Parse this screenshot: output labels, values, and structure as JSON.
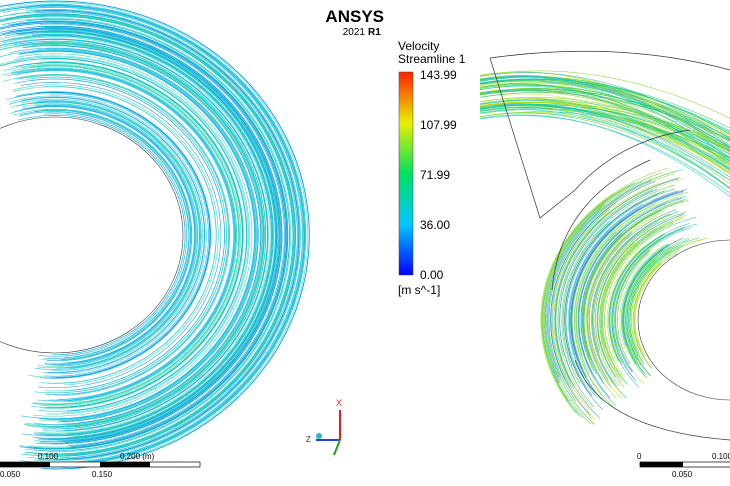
{
  "logo": {
    "brand": "ANSYS",
    "year": "2021",
    "release": "R1"
  },
  "legend": {
    "title": "Velocity",
    "subtitle": "Streamline 1",
    "ticks": [
      "143.99",
      "107.99",
      "71.99",
      "36.00",
      "0.00"
    ],
    "unit": "[m s^-1]"
  },
  "scale_left": {
    "top": [
      "0.100",
      "0.200 (m)"
    ],
    "bottom": [
      "0.050",
      "0.150"
    ]
  },
  "scale_right": {
    "top": [
      "0",
      "0.100"
    ],
    "bottom": [
      "0.050"
    ]
  },
  "triad": {
    "x": "X",
    "z": "Z"
  }
}
